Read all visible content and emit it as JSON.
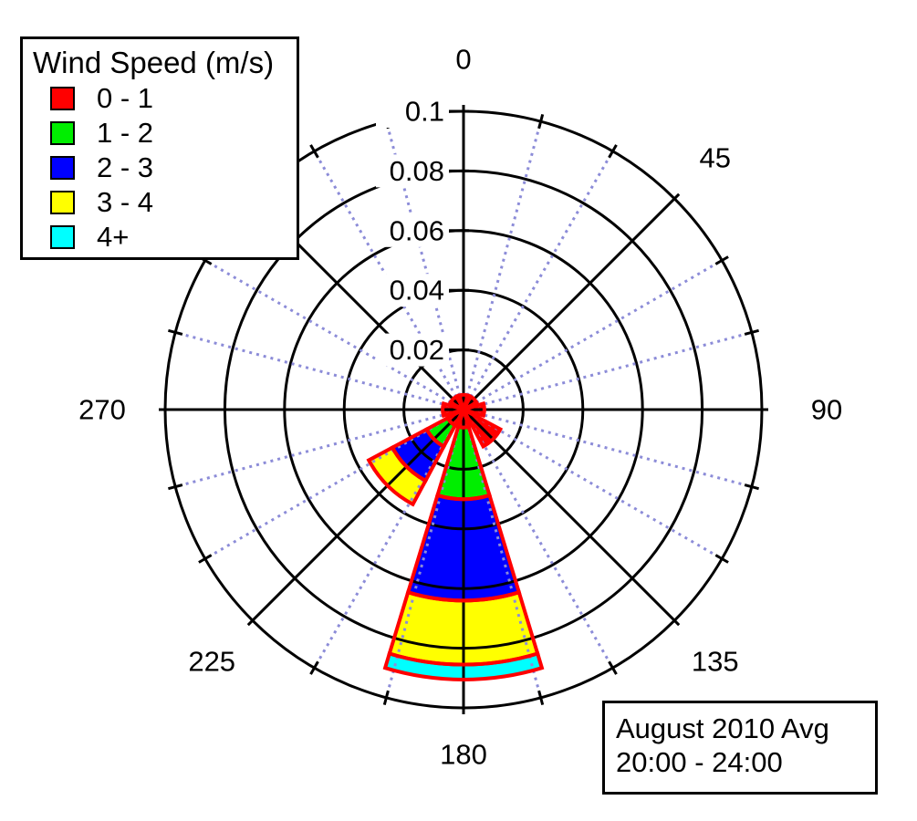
{
  "legend": {
    "title": "Wind Speed (m/s)",
    "items": [
      {
        "label": "0 - 1",
        "color": "#ff0000"
      },
      {
        "label": "1 - 2",
        "color": "#00ee00"
      },
      {
        "label": "2 - 3",
        "color": "#0000ff"
      },
      {
        "label": "3 - 4",
        "color": "#ffff00"
      },
      {
        "label": "4+",
        "color": "#00ffff"
      }
    ]
  },
  "annotation": {
    "lines": [
      "August 2010 Avg",
      "20:00 - 24:00"
    ]
  },
  "chart_data": {
    "type": "windrose (stacked polar bar)",
    "title": "Wind Speed (m/s)",
    "radial_axis": {
      "max": 0.1,
      "ticks": [
        {
          "value": 0.1,
          "label": "0.1"
        },
        {
          "value": 0.08,
          "label": "0.08"
        },
        {
          "value": 0.06,
          "label": "0.06"
        },
        {
          "value": 0.04,
          "label": "0.04"
        },
        {
          "value": 0.02,
          "label": "0.02"
        }
      ]
    },
    "angle_axis": {
      "labels": [
        {
          "deg": 0,
          "label": "0"
        },
        {
          "deg": 45,
          "label": "45"
        },
        {
          "deg": 90,
          "label": "90"
        },
        {
          "deg": 135,
          "label": "135"
        },
        {
          "deg": 180,
          "label": "180"
        },
        {
          "deg": 225,
          "label": "225"
        },
        {
          "deg": 270,
          "label": "270"
        }
      ],
      "solid_line_every_deg": 45,
      "dotted_line_every_deg": 15,
      "outer_tick_every_deg": 15
    },
    "speed_bins": [
      {
        "label": "0 - 1",
        "color": "#ff0000"
      },
      {
        "label": "1 - 2",
        "color": "#00ee00"
      },
      {
        "label": "2 - 3",
        "color": "#0000ff"
      },
      {
        "label": "3 - 4",
        "color": "#ffff00"
      },
      {
        "label": "4+",
        "color": "#00ffff"
      }
    ],
    "wedge_width_deg": 33.75,
    "wedge_outline_color": "#ff0000",
    "grid_color": "#000000",
    "dotted_line_color": "#8c8cd8",
    "directions": [
      {
        "deg": 0,
        "freq": [
          0.005,
          0,
          0,
          0,
          0
        ]
      },
      {
        "deg": 45,
        "freq": [
          0.005,
          0,
          0,
          0,
          0
        ]
      },
      {
        "deg": 90,
        "freq": [
          0.007,
          0,
          0,
          0,
          0
        ]
      },
      {
        "deg": 135,
        "freq": [
          0.014,
          0,
          0,
          0,
          0
        ]
      },
      {
        "deg": 180,
        "freq": [
          0.006,
          0.024,
          0.034,
          0.0215,
          0.005
        ]
      },
      {
        "deg": 225,
        "freq": [
          0.006,
          0.008,
          0.013,
          0.009,
          0
        ]
      },
      {
        "deg": 270,
        "freq": [
          0.007,
          0,
          0,
          0,
          0
        ]
      },
      {
        "deg": 315,
        "freq": [
          0.005,
          0,
          0,
          0,
          0
        ]
      }
    ]
  }
}
